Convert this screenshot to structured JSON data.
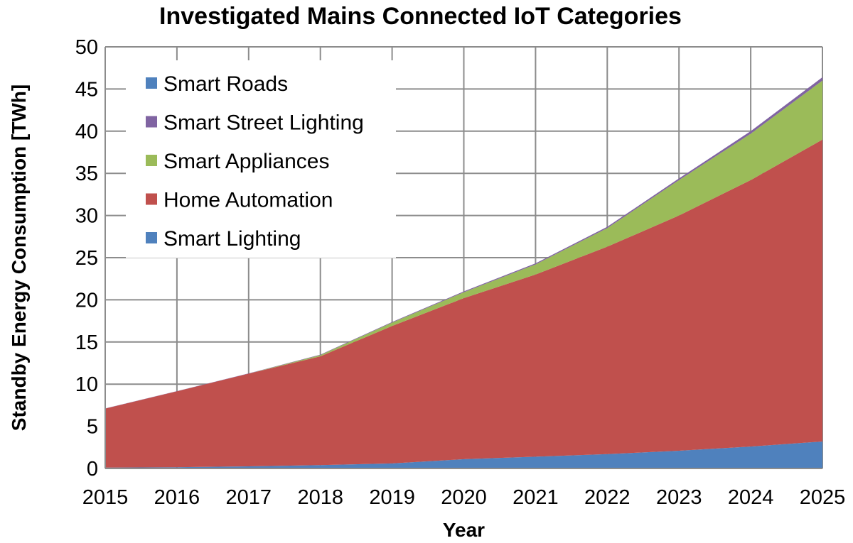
{
  "chart_data": {
    "type": "area",
    "stacked": true,
    "title": "Investigated Mains Connected IoT Categories",
    "xlabel": "Year",
    "ylabel": "Standby Energy Consumption [TWh]",
    "x": [
      2015,
      2016,
      2017,
      2018,
      2019,
      2020,
      2021,
      2022,
      2023,
      2024,
      2025
    ],
    "xlim": [
      2015,
      2025
    ],
    "ylim": [
      0,
      50
    ],
    "yticks": [
      0,
      5,
      10,
      15,
      20,
      25,
      30,
      35,
      40,
      45,
      50
    ],
    "grid": true,
    "legend_position": "top-left",
    "series": [
      {
        "name": "Smart Lighting",
        "color": "#4F81BD",
        "values": [
          0.1,
          0.15,
          0.25,
          0.4,
          0.6,
          1.1,
          1.4,
          1.7,
          2.1,
          2.6,
          3.2
        ]
      },
      {
        "name": "Home Automation",
        "color": "#C0504D",
        "values": [
          7.0,
          9.0,
          11.0,
          12.9,
          16.3,
          19.1,
          21.6,
          24.6,
          27.9,
          31.6,
          35.8
        ]
      },
      {
        "name": "Smart Appliances",
        "color": "#9BBB59",
        "values": [
          0.0,
          0.0,
          0.0,
          0.15,
          0.4,
          0.7,
          1.2,
          2.2,
          4.2,
          5.5,
          7.0
        ]
      },
      {
        "name": "Smart Street Lighting",
        "color": "#8064A2",
        "values": [
          0.02,
          0.02,
          0.03,
          0.05,
          0.07,
          0.1,
          0.13,
          0.16,
          0.2,
          0.3,
          0.4
        ]
      },
      {
        "name": "Smart Roads",
        "color": "#4F81BD",
        "values": [
          0,
          0,
          0,
          0,
          0,
          0,
          0,
          0,
          0,
          0,
          0
        ]
      }
    ],
    "legend_order": [
      "Smart Roads",
      "Smart Street Lighting",
      "Smart Appliances",
      "Home Automation",
      "Smart Lighting"
    ]
  }
}
